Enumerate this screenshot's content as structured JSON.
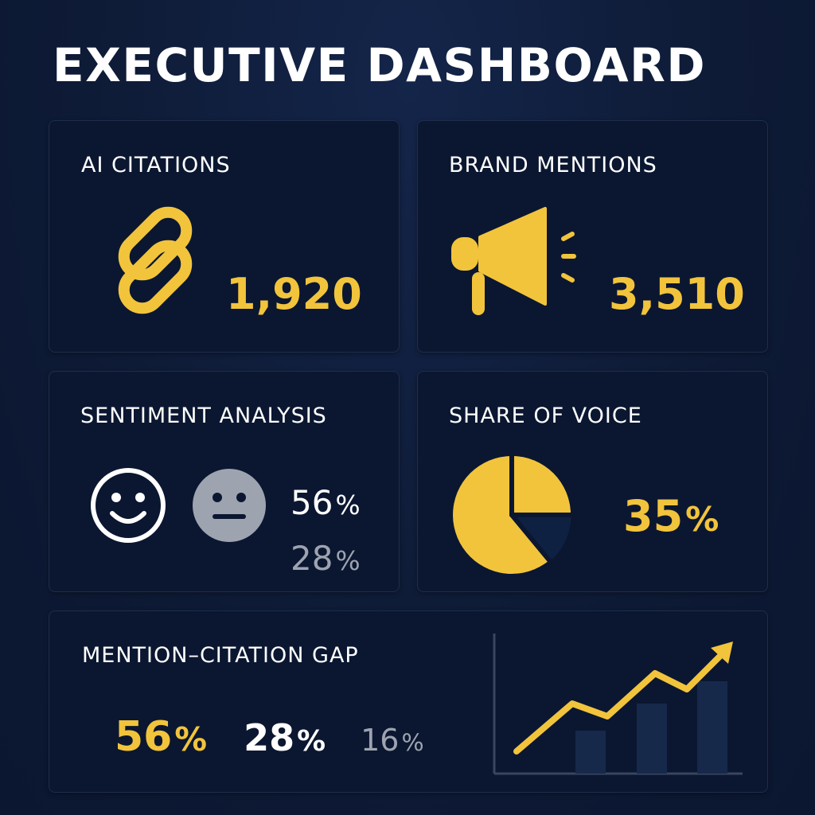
{
  "page": {
    "title": "EXECUTIVE DASHBOARD"
  },
  "colors": {
    "accent": "#f2c43c",
    "background": "#0e1b36",
    "card": "#0b1731",
    "neutral": "#9da4b0"
  },
  "cards": {
    "ai_citations": {
      "title": "AI CITATIONS",
      "value": "1,920",
      "icon": "chain-link-icon"
    },
    "brand_mentions": {
      "title": "BRAND MENTIONS",
      "value": "3,510",
      "icon": "megaphone-icon"
    },
    "sentiment": {
      "title": "SENTIMENT ANALYSIS",
      "positive_value": "56",
      "neutral_value": "28",
      "unit": "%",
      "icons": [
        "smiley-face-icon",
        "neutral-face-icon"
      ]
    },
    "share_of_voice": {
      "title": "SHARE OF VOICE",
      "value": "35",
      "unit": "%",
      "icon": "pie-chart-icon"
    },
    "gap": {
      "title": "MENTION–CITATION GAP",
      "values": [
        "56",
        "28",
        "16"
      ],
      "unit": "%",
      "icon": "trend-chart-icon"
    }
  }
}
